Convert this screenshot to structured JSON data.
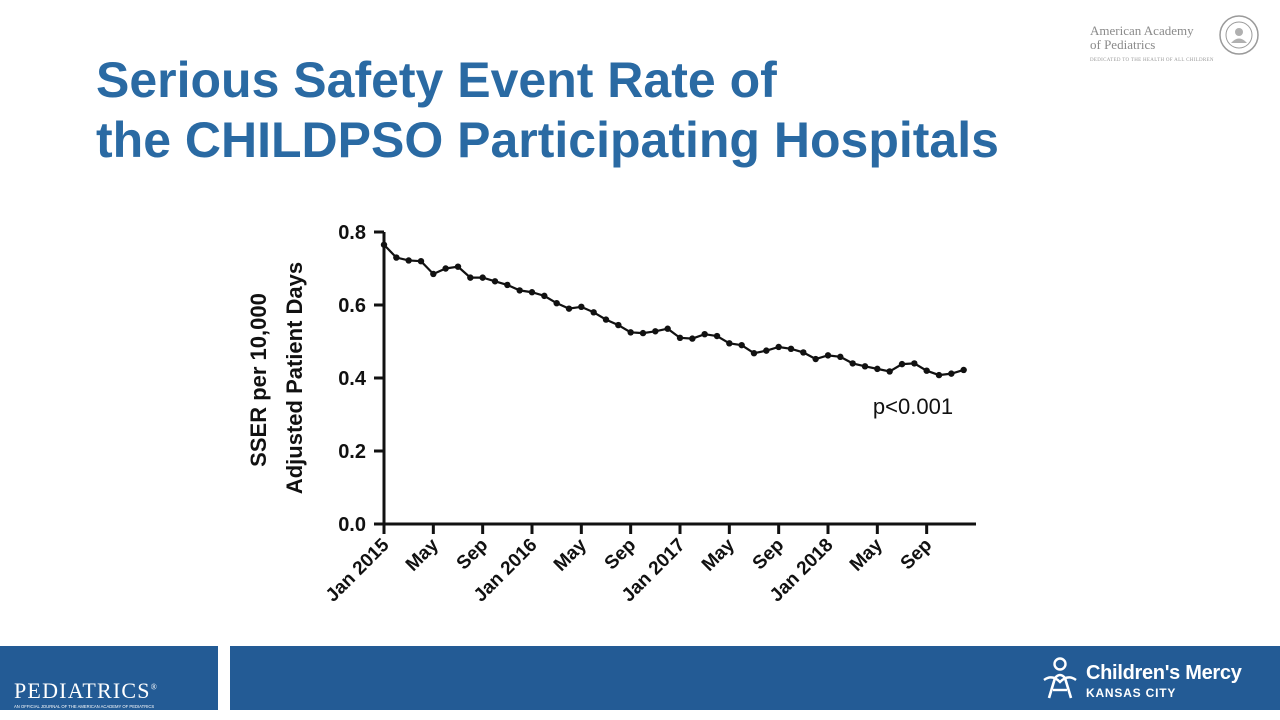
{
  "slide": {
    "title_line1": "Serious Safety Event Rate of",
    "title_line2": "the CHILDPSO Participating Hospitals",
    "title_color": "#2a6aa3"
  },
  "logos": {
    "aap_line1": "American Academy",
    "aap_line2": "of Pediatrics",
    "aap_tagline": "DEDICATED TO THE HEALTH OF ALL CHILDREN",
    "pediatrics_word": "PEDIATRICS",
    "pediatrics_registered": "®",
    "pediatrics_sub": "AN OFFICIAL JOURNAL OF THE AMERICAN ACADEMY OF PEDIATRICS",
    "childrens_mercy_name": "Children's Mercy",
    "childrens_mercy_city": "KANSAS CITY",
    "footer_color": "#235b95"
  },
  "chart_data": {
    "type": "line",
    "title": "",
    "xlabel": "",
    "ylabel_line1": "SSER per 10,000",
    "ylabel_line2": "Adjusted Patient Days",
    "ylim": [
      0,
      0.8
    ],
    "yticks": [
      "0.0",
      "0.2",
      "0.4",
      "0.6",
      "0.8"
    ],
    "xticks": [
      {
        "month": 0,
        "label": "Jan 2015"
      },
      {
        "month": 4,
        "label": "May"
      },
      {
        "month": 8,
        "label": "Sep"
      },
      {
        "month": 12,
        "label": "Jan 2016"
      },
      {
        "month": 16,
        "label": "May"
      },
      {
        "month": 20,
        "label": "Sep"
      },
      {
        "month": 24,
        "label": "Jan 2017"
      },
      {
        "month": 28,
        "label": "May"
      },
      {
        "month": 32,
        "label": "Sep"
      },
      {
        "month": 36,
        "label": "Jan 2018"
      },
      {
        "month": 40,
        "label": "May"
      },
      {
        "month": 44,
        "label": "Sep"
      }
    ],
    "annotation": "p<0.001",
    "grid": false,
    "line_color": "#111111",
    "series": [
      {
        "name": "",
        "values": [
          0.765,
          0.73,
          0.722,
          0.72,
          0.685,
          0.7,
          0.705,
          0.675,
          0.675,
          0.665,
          0.655,
          0.64,
          0.635,
          0.625,
          0.605,
          0.59,
          0.595,
          0.58,
          0.56,
          0.545,
          0.525,
          0.523,
          0.528,
          0.535,
          0.51,
          0.508,
          0.52,
          0.515,
          0.495,
          0.49,
          0.468,
          0.475,
          0.485,
          0.48,
          0.47,
          0.452,
          0.462,
          0.458,
          0.44,
          0.432,
          0.425,
          0.418,
          0.438,
          0.44,
          0.42,
          0.408,
          0.412,
          0.422
        ]
      }
    ]
  }
}
